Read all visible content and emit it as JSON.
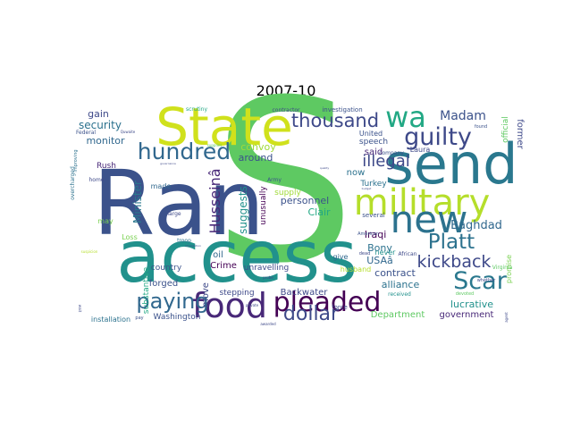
{
  "title": "2007-10",
  "words": [
    {
      "text": "S",
      "color": "#5ec962"
    },
    {
      "text": "access",
      "color": "#21918c"
    },
    {
      "text": "Ran",
      "color": "#3b528b"
    },
    {
      "text": "State",
      "color": "#d0e11c"
    },
    {
      "text": "send",
      "color": "#2a788e"
    },
    {
      "text": "military",
      "color": "#b5de2b"
    },
    {
      "text": "new",
      "color": "#2c728e"
    },
    {
      "text": "wa",
      "color": "#22a884"
    },
    {
      "text": "guilty",
      "color": "#3e4989"
    },
    {
      "text": "thousand",
      "color": "#3e4989"
    },
    {
      "text": "hundred",
      "color": "#31688e"
    },
    {
      "text": "food",
      "color": "#482878"
    },
    {
      "text": "pleaded",
      "color": "#440154"
    },
    {
      "text": "paying",
      "color": "#31688e"
    },
    {
      "text": "dollar",
      "color": "#3e4989"
    },
    {
      "text": "Scar",
      "color": "#2a788e"
    },
    {
      "text": "Platt",
      "color": "#2c728e"
    },
    {
      "text": "kickback",
      "color": "#3e4989"
    },
    {
      "text": "Husseinâ",
      "color": "#482878"
    },
    {
      "text": "illegal",
      "color": "#3e4989"
    },
    {
      "text": "Madam",
      "color": "#3b528b"
    },
    {
      "text": "Baghdad",
      "color": "#31688e"
    },
    {
      "text": "Iraqi",
      "color": "#440154"
    },
    {
      "text": "security",
      "color": "#2c728e"
    },
    {
      "text": "gain",
      "color": "#3e4989"
    },
    {
      "text": "monitor",
      "color": "#31688e"
    },
    {
      "text": "Minister",
      "color": "#2a788e"
    },
    {
      "text": "suggests",
      "color": "#21918c"
    },
    {
      "text": "around",
      "color": "#3b528b"
    },
    {
      "text": "convoy",
      "color": "#a0da39"
    },
    {
      "text": "personnel",
      "color": "#3b528b"
    },
    {
      "text": "Clair",
      "color": "#22a884"
    },
    {
      "text": "Bony",
      "color": "#2c728e"
    },
    {
      "text": "USAâ",
      "color": "#31688e"
    },
    {
      "text": "contract",
      "color": "#3b528b"
    },
    {
      "text": "alliance",
      "color": "#2c728e"
    },
    {
      "text": "lucrative",
      "color": "#21918c"
    },
    {
      "text": "former",
      "color": "#3e4989"
    },
    {
      "text": "said",
      "color": "#482878"
    },
    {
      "text": "now",
      "color": "#2c728e"
    },
    {
      "text": "Crime",
      "color": "#440154"
    },
    {
      "text": "oil",
      "color": "#31688e"
    },
    {
      "text": "forged",
      "color": "#3b528b"
    },
    {
      "text": "move",
      "color": "#3e4989"
    },
    {
      "text": "Backwater",
      "color": "#3e4989"
    },
    {
      "text": "unravelling",
      "color": "#3e4989"
    },
    {
      "text": "unusually",
      "color": "#440154"
    },
    {
      "text": "Department",
      "color": "#5ec962"
    },
    {
      "text": "government",
      "color": "#482878"
    },
    {
      "text": "Turkey",
      "color": "#2c728e"
    },
    {
      "text": "speech",
      "color": "#3b528b"
    },
    {
      "text": "Laura",
      "color": "#3e4989"
    },
    {
      "text": "United",
      "color": "#3b528b"
    },
    {
      "text": "official",
      "color": "#5ec962"
    },
    {
      "text": "promise",
      "color": "#7ad151"
    },
    {
      "text": "supply",
      "color": "#a0da39"
    },
    {
      "text": "made",
      "color": "#31688e"
    },
    {
      "text": "Rush",
      "color": "#482878"
    },
    {
      "text": "stepping",
      "color": "#3e4989"
    },
    {
      "text": "Washington",
      "color": "#3b528b"
    },
    {
      "text": "installation",
      "color": "#2c728e"
    },
    {
      "text": "country",
      "color": "#3b528b"
    },
    {
      "text": "substantive",
      "color": "#22a884"
    },
    {
      "text": "give",
      "color": "#31688e"
    },
    {
      "text": "husband",
      "color": "#b5de2b"
    },
    {
      "text": "never",
      "color": "#21918c"
    },
    {
      "text": "received",
      "color": "#21918c"
    },
    {
      "text": "force",
      "color": "#3e4989"
    },
    {
      "text": "several",
      "color": "#3b528b"
    },
    {
      "text": "investigation",
      "color": "#3b528b"
    },
    {
      "text": "contractor",
      "color": "#3e4989"
    },
    {
      "text": "scrutiny",
      "color": "#22a884"
    },
    {
      "text": "Federal",
      "color": "#3b528b"
    },
    {
      "text": "Loss",
      "color": "#7ad151"
    },
    {
      "text": "may",
      "color": "#7ad151"
    },
    {
      "text": "troop",
      "color": "#2c728e"
    },
    {
      "text": "large",
      "color": "#3e4989"
    },
    {
      "text": "home",
      "color": "#3e4989"
    },
    {
      "text": "overcharged",
      "color": "#2c728e"
    },
    {
      "text": "improving",
      "color": "#2c728e"
    },
    {
      "text": "Army",
      "color": "#3b528b"
    },
    {
      "text": "dead",
      "color": "#3e4989"
    },
    {
      "text": "company",
      "color": "#3b528b"
    },
    {
      "text": "American",
      "color": "#3b528b"
    },
    {
      "text": "African",
      "color": "#3e4989"
    },
    {
      "text": "Virginia",
      "color": "#5ec962"
    },
    {
      "text": "devoted",
      "color": "#5ec962"
    },
    {
      "text": "whether",
      "color": "#3e4989"
    },
    {
      "text": "found",
      "color": "#3b528b"
    },
    {
      "text": "pay",
      "color": "#3b528b"
    },
    {
      "text": "awarded",
      "color": "#3e4989"
    },
    {
      "text": "private",
      "color": "#3e4989"
    },
    {
      "text": "wait",
      "color": "#3e4989"
    },
    {
      "text": "agent",
      "color": "#3e4989"
    },
    {
      "text": "Quwaite",
      "color": "#3e4989"
    },
    {
      "text": "governance",
      "color": "#3e4989"
    },
    {
      "text": "supplies",
      "color": "#5ec962"
    },
    {
      "text": "suspicion",
      "color": "#b5de2b"
    },
    {
      "text": "probe",
      "color": "#3e4989"
    },
    {
      "text": "quality",
      "color": "#3e4989"
    },
    {
      "text": "budget",
      "color": "#3e4989"
    },
    {
      "text": "ammunition",
      "color": "#3e4989"
    }
  ]
}
